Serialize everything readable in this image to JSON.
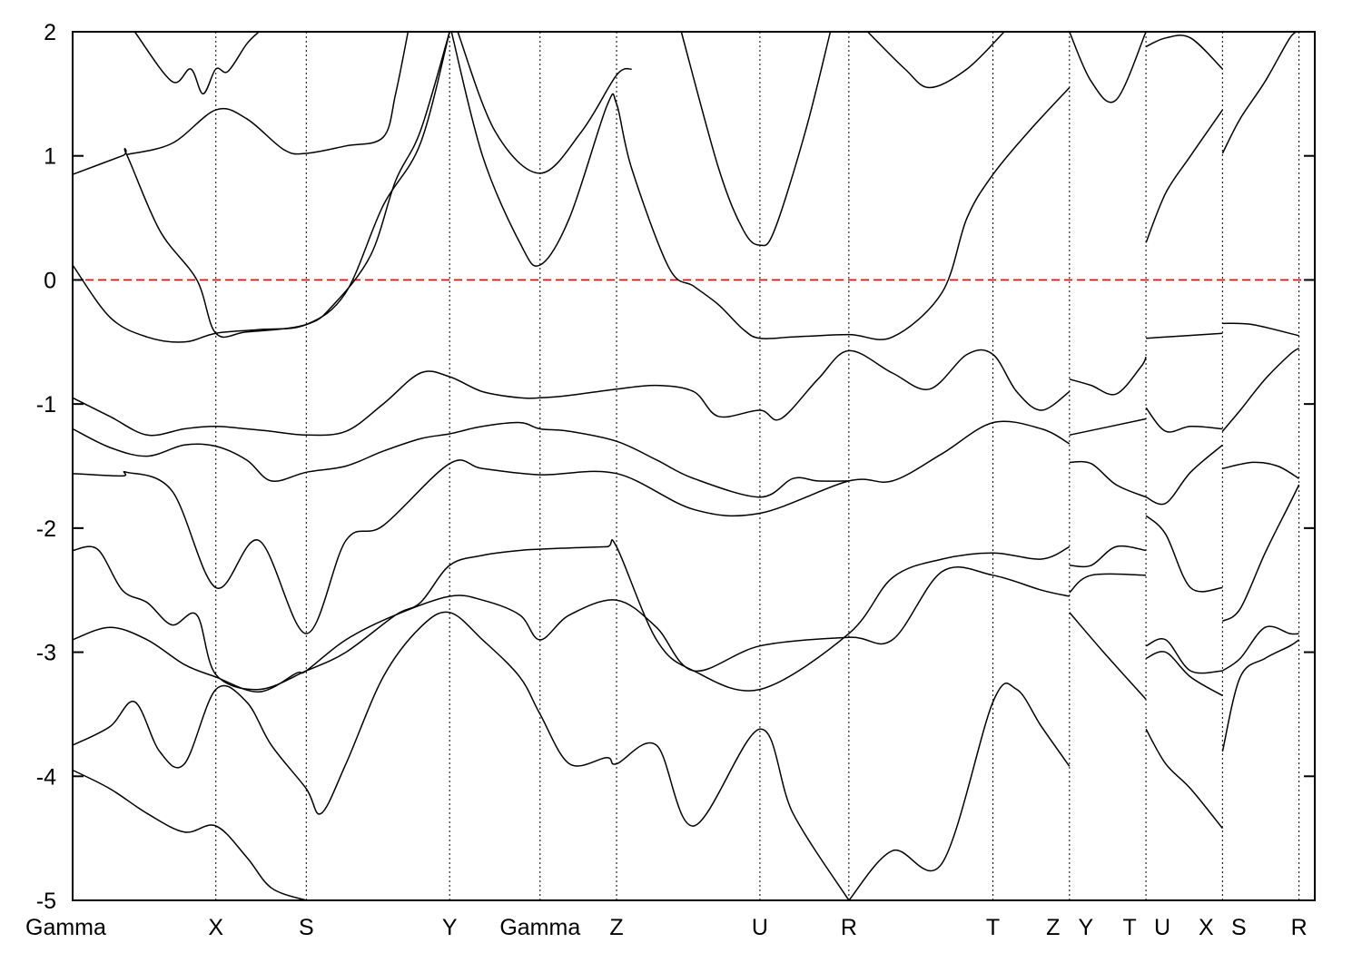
{
  "chart_data": {
    "type": "line",
    "title": "",
    "xlabel": "",
    "ylabel": "",
    "ylim": [
      -5,
      2
    ],
    "yticks": [
      -5,
      -4,
      -3,
      -2,
      -1,
      0,
      1,
      2
    ],
    "x_path_labels": [
      "Gamma",
      "X",
      "S",
      "Y",
      "Gamma",
      "Z",
      "U",
      "R",
      "T",
      "Z",
      "Y",
      "T",
      "U",
      "X",
      "S",
      "R"
    ],
    "x_path_positions": [
      0,
      0.1153,
      0.1881,
      0.3035,
      0.3763,
      0.4379,
      0.5533,
      0.6249,
      0.7409,
      0.8025,
      0.8025,
      0.8641,
      0.8641,
      0.9257,
      0.9257,
      0.9873
    ],
    "x_total": 1.0,
    "fermi_level": {
      "value": 0,
      "color": "#e00000",
      "style": "dashed"
    },
    "band_color": "#000000",
    "grid": "vertical dotted at high-symmetry points",
    "series": [
      {
        "x": [
          0,
          0.03,
          0.06,
          0.09,
          0.1153,
          0.15,
          0.1881,
          0.22,
          0.25,
          0.28,
          0.3035
        ],
        "values": [
          0.12,
          -0.3,
          -0.46,
          -0.5,
          -0.43,
          -0.4,
          -0.36,
          -0.1,
          0.6,
          1.1,
          2.0
        ]
      },
      {
        "x": [
          0,
          0.04,
          0.0435,
          0.07,
          0.1,
          0.1153,
          0.14,
          0.1881,
          0.21,
          0.24,
          0.26,
          0.28,
          0.3035
        ],
        "values": [
          0.85,
          1.0,
          1.01,
          0.4,
          0.0,
          -0.43,
          -0.42,
          -0.36,
          -0.2,
          0.2,
          0.8,
          1.2,
          2.0
        ]
      },
      {
        "x": [
          0.0435,
          0.08,
          0.1153,
          0.14,
          0.17,
          0.1881,
          0.22,
          0.25,
          0.26,
          0.27
        ],
        "values": [
          1.01,
          1.1,
          1.37,
          1.3,
          1.05,
          1.02,
          1.08,
          1.15,
          1.5,
          2.0
        ]
      },
      {
        "x": [
          0.05,
          0.08,
          0.095,
          0.105,
          0.1153,
          0.125,
          0.14,
          0.15
        ],
        "values": [
          2.0,
          1.6,
          1.7,
          1.5,
          1.7,
          1.68,
          1.9,
          2.0
        ]
      },
      {
        "x": [
          0.305,
          0.33,
          0.36,
          0.3763,
          0.4,
          0.43,
          0.4379,
          0.45,
          0.48,
          0.5,
          0.52,
          0.54,
          0.5533,
          0.58,
          0.6249,
          0.66,
          0.7,
          0.72,
          0.7409,
          0.77,
          0.8025
        ],
        "values": [
          2.0,
          1.0,
          0.3,
          0.12,
          0.5,
          1.4,
          1.42,
          0.9,
          0.1,
          -0.05,
          -0.2,
          -0.4,
          -0.47,
          -0.46,
          -0.44,
          -0.46,
          -0.1,
          0.5,
          0.85,
          1.2,
          1.55
        ]
      },
      {
        "x": [
          0.31,
          0.34,
          0.3763,
          0.41,
          0.4379,
          0.45
        ],
        "values": [
          2.0,
          1.2,
          0.86,
          1.2,
          1.65,
          1.7
        ]
      },
      {
        "x": [
          0.49,
          0.52,
          0.54,
          0.5533,
          0.565,
          0.59,
          0.61
        ],
        "values": [
          2.0,
          0.9,
          0.4,
          0.28,
          0.4,
          1.2,
          2.0
        ]
      },
      {
        "x": [
          0.64,
          0.67,
          0.69,
          0.72,
          0.75
        ],
        "values": [
          2.0,
          1.7,
          1.55,
          1.7,
          2.0
        ]
      },
      {
        "x": [
          0,
          0.03,
          0.06,
          0.09,
          0.1153,
          0.14,
          0.16,
          0.1881,
          0.22,
          0.25,
          0.28,
          0.3035,
          0.33,
          0.36,
          0.3763,
          0.4,
          0.4379,
          0.47,
          0.5,
          0.52,
          0.5533,
          0.57,
          0.6,
          0.6249,
          0.66,
          0.69,
          0.72,
          0.7409,
          0.76,
          0.78,
          0.8025
        ],
        "values": [
          -0.95,
          -1.1,
          -1.25,
          -1.2,
          -1.18,
          -1.2,
          -1.22,
          -1.25,
          -1.22,
          -1.0,
          -0.75,
          -0.78,
          -0.9,
          -0.95,
          -0.95,
          -0.93,
          -0.88,
          -0.85,
          -0.9,
          -1.1,
          -1.05,
          -1.12,
          -0.8,
          -0.57,
          -0.75,
          -0.88,
          -0.6,
          -0.6,
          -0.9,
          -1.05,
          -0.9
        ]
      },
      {
        "x": [
          0,
          0.03,
          0.06,
          0.09,
          0.1153,
          0.14,
          0.16,
          0.1881,
          0.22,
          0.25,
          0.28,
          0.3035,
          0.33,
          0.36,
          0.3763,
          0.4,
          0.4379,
          0.47,
          0.5,
          0.5533,
          0.58,
          0.6,
          0.6249
        ],
        "values": [
          -1.2,
          -1.35,
          -1.42,
          -1.33,
          -1.34,
          -1.45,
          -1.62,
          -1.55,
          -1.5,
          -1.38,
          -1.28,
          -1.24,
          -1.18,
          -1.15,
          -1.2,
          -1.22,
          -1.3,
          -1.45,
          -1.6,
          -1.75,
          -1.6,
          -1.62,
          -1.62
        ]
      },
      {
        "x": [
          0,
          0.04,
          0.0435,
          0.08,
          0.1153,
          0.15,
          0.1881,
          0.22,
          0.25,
          0.3035,
          0.33,
          0.3763,
          0.4379,
          0.5,
          0.5533,
          0.6249,
          0.66,
          0.7,
          0.7409,
          0.78,
          0.8025
        ],
        "values": [
          -1.56,
          -1.58,
          -1.55,
          -1.7,
          -2.48,
          -2.1,
          -2.85,
          -2.1,
          -1.98,
          -1.48,
          -1.52,
          -1.57,
          -1.56,
          -1.85,
          -1.88,
          -1.62,
          -1.62,
          -1.4,
          -1.15,
          -1.2,
          -1.32
        ]
      },
      {
        "x": [
          0,
          0.02,
          0.04,
          0.06,
          0.08,
          0.1,
          0.1153,
          0.15,
          0.1881,
          0.22,
          0.26,
          0.28,
          0.3035,
          0.33,
          0.36,
          0.3763,
          0.4,
          0.43,
          0.4379,
          0.47,
          0.5,
          0.5533,
          0.6249,
          0.66,
          0.7,
          0.7409,
          0.78,
          0.8025
        ],
        "values": [
          -2.18,
          -2.17,
          -2.5,
          -2.6,
          -2.78,
          -2.7,
          -3.18,
          -3.3,
          -3.15,
          -3.0,
          -2.7,
          -2.6,
          -2.3,
          -2.22,
          -2.18,
          -2.17,
          -2.16,
          -2.15,
          -2.15,
          -2.9,
          -3.15,
          -3.3,
          -2.85,
          -2.4,
          -2.25,
          -2.2,
          -2.25,
          -2.15
        ]
      },
      {
        "x": [
          0,
          0.03,
          0.06,
          0.09,
          0.1153,
          0.15,
          0.18,
          0.1881,
          0.22,
          0.26,
          0.3035,
          0.33,
          0.36,
          0.3763,
          0.4,
          0.4379,
          0.47,
          0.5,
          0.5533,
          0.6249,
          0.66,
          0.7,
          0.7409,
          0.78,
          0.8025
        ],
        "values": [
          -2.9,
          -2.8,
          -2.9,
          -3.1,
          -3.2,
          -3.32,
          -3.17,
          -3.15,
          -2.9,
          -2.7,
          -2.55,
          -2.58,
          -2.7,
          -2.9,
          -2.7,
          -2.58,
          -2.8,
          -3.15,
          -2.95,
          -2.88,
          -2.9,
          -2.35,
          -2.38,
          -2.5,
          -2.55
        ]
      },
      {
        "x": [
          0,
          0.03,
          0.05,
          0.07,
          0.09,
          0.1153,
          0.14,
          0.16,
          0.1881,
          0.2,
          0.22,
          0.25,
          0.28,
          0.3035,
          0.33,
          0.36,
          0.3763,
          0.4,
          0.43,
          0.4379,
          0.47,
          0.5,
          0.5533,
          0.58,
          0.6249
        ],
        "values": [
          -3.75,
          -3.6,
          -3.4,
          -3.8,
          -3.9,
          -3.3,
          -3.4,
          -3.75,
          -4.1,
          -4.3,
          -3.9,
          -3.2,
          -2.8,
          -2.68,
          -2.9,
          -3.2,
          -3.5,
          -3.9,
          -3.85,
          -3.9,
          -3.75,
          -4.4,
          -3.62,
          -4.3,
          -5.0
        ]
      },
      {
        "x": [
          0,
          0.03,
          0.06,
          0.09,
          0.1153,
          0.14,
          0.16,
          0.1881
        ],
        "values": [
          -3.95,
          -4.1,
          -4.3,
          -4.45,
          -4.4,
          -4.65,
          -4.9,
          -5.0
        ]
      },
      {
        "x": [
          0.6249,
          0.66,
          0.7,
          0.7409,
          0.76,
          0.78,
          0.8025
        ],
        "values": [
          -5.0,
          -4.6,
          -4.7,
          -3.4,
          -3.3,
          -3.6,
          -3.92
        ]
      },
      {
        "x": [
          0.8025,
          0.82,
          0.84,
          0.8641
        ],
        "values": [
          2.0,
          1.6,
          1.45,
          2.0
        ]
      },
      {
        "x": [
          0.8025,
          0.82,
          0.84,
          0.86,
          0.8641
        ],
        "values": [
          -0.8,
          -0.85,
          -0.92,
          -0.7,
          -0.62
        ]
      },
      {
        "x": [
          0.8025,
          0.8641
        ],
        "values": [
          -1.25,
          -1.12
        ]
      },
      {
        "x": [
          0.8025,
          0.82,
          0.84,
          0.8641
        ],
        "values": [
          -1.47,
          -1.48,
          -1.65,
          -1.75
        ]
      },
      {
        "x": [
          0.8025,
          0.82,
          0.84,
          0.8641
        ],
        "values": [
          -2.3,
          -2.3,
          -2.15,
          -2.18
        ]
      },
      {
        "x": [
          0.8025,
          0.82,
          0.8641
        ],
        "values": [
          -2.52,
          -2.38,
          -2.38
        ]
      },
      {
        "x": [
          0.8025,
          0.83,
          0.8641
        ],
        "values": [
          -2.68,
          -3.0,
          -3.38
        ]
      },
      {
        "x": [
          0.8641,
          0.88,
          0.9,
          0.9257
        ],
        "values": [
          1.88,
          1.95,
          1.95,
          1.7
        ]
      },
      {
        "x": [
          0.8641,
          0.88,
          0.9,
          0.9257
        ],
        "values": [
          0.3,
          0.7,
          1.0,
          1.37
        ]
      },
      {
        "x": [
          0.8641,
          0.9257
        ],
        "values": [
          -0.47,
          -0.43
        ]
      },
      {
        "x": [
          0.8641,
          0.88,
          0.9,
          0.9257
        ],
        "values": [
          -1.03,
          -1.22,
          -1.18,
          -1.2
        ]
      },
      {
        "x": [
          0.8641,
          0.88,
          0.9,
          0.9257
        ],
        "values": [
          -1.75,
          -1.8,
          -1.55,
          -1.33
        ]
      },
      {
        "x": [
          0.8641,
          0.88,
          0.9,
          0.9257
        ],
        "values": [
          -1.9,
          -2.05,
          -2.48,
          -2.48
        ]
      },
      {
        "x": [
          0.8641,
          0.88,
          0.9,
          0.9257
        ],
        "values": [
          -2.95,
          -2.9,
          -3.15,
          -3.15
        ]
      },
      {
        "x": [
          0.8641,
          0.88,
          0.9,
          0.9257
        ],
        "values": [
          -3.05,
          -3.0,
          -3.2,
          -3.35
        ]
      },
      {
        "x": [
          0.8641,
          0.88,
          0.9,
          0.9257
        ],
        "values": [
          -3.62,
          -3.9,
          -4.1,
          -4.42
        ]
      },
      {
        "x": [
          0.9257,
          0.94,
          0.96,
          0.98,
          0.9873
        ],
        "values": [
          1.02,
          1.3,
          1.6,
          1.95,
          2.0
        ]
      },
      {
        "x": [
          0.9257,
          0.95,
          0.9873
        ],
        "values": [
          -0.35,
          -0.36,
          -0.45
        ]
      },
      {
        "x": [
          0.9257,
          0.94,
          0.96,
          0.98,
          0.9873
        ],
        "values": [
          -1.22,
          -1.05,
          -0.8,
          -0.6,
          -0.55
        ]
      },
      {
        "x": [
          0.9257,
          0.95,
          0.97,
          0.9873
        ],
        "values": [
          -1.52,
          -1.47,
          -1.5,
          -1.6
        ]
      },
      {
        "x": [
          0.9257,
          0.94,
          0.96,
          0.98,
          0.9873
        ],
        "values": [
          -2.75,
          -2.65,
          -2.2,
          -1.8,
          -1.65
        ]
      },
      {
        "x": [
          0.9257,
          0.94,
          0.96,
          0.98,
          0.9873
        ],
        "values": [
          -3.15,
          -3.05,
          -2.8,
          -2.85,
          -2.85
        ]
      },
      {
        "x": [
          0.9257,
          0.94,
          0.96,
          0.98,
          0.9873
        ],
        "values": [
          -3.8,
          -3.2,
          -3.05,
          -2.95,
          -2.9
        ]
      }
    ]
  }
}
